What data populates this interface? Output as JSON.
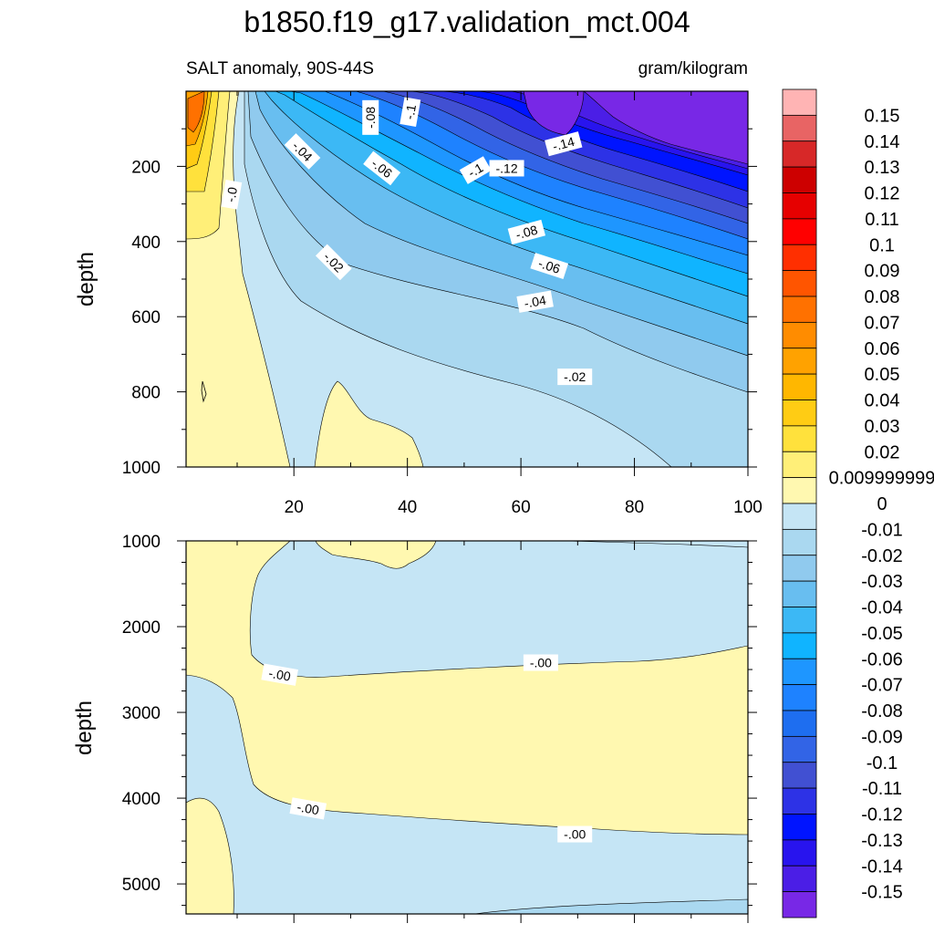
{
  "chart_data": [
    {
      "type": "heatmap",
      "title": "b1850.f19_g17.validation_mct.004",
      "subtitle_left": "SALT anomaly, 90S-44S",
      "subtitle_right": "gram/kilogram",
      "xlabel": "",
      "ylabel": "depth",
      "xlim": [
        1,
        100
      ],
      "ylim": [
        1000,
        0
      ],
      "x_ticks": [
        20,
        40,
        60,
        80,
        100
      ],
      "y_ticks": [
        200,
        400,
        600,
        800,
        1000
      ],
      "contour_labels": [
        {
          "text": "-.08",
          "x": 33.5,
          "y": 70,
          "rot": -90
        },
        {
          "text": "-.1",
          "x": 40.5,
          "y": 55,
          "rot": -80
        },
        {
          "text": "-.04",
          "x": 21.5,
          "y": 160,
          "rot": 45
        },
        {
          "text": "-.06",
          "x": 35.5,
          "y": 205,
          "rot": 38
        },
        {
          "text": "-.0",
          "x": 9,
          "y": 275,
          "rot": -80
        },
        {
          "text": "-.14",
          "x": 67.5,
          "y": 140,
          "rot": -15
        },
        {
          "text": "-.1",
          "x": 52,
          "y": 210,
          "rot": -30
        },
        {
          "text": "-.12",
          "x": 57.5,
          "y": 205,
          "rot": 0
        },
        {
          "text": "-.08",
          "x": 61,
          "y": 375,
          "rot": -15
        },
        {
          "text": "-.02",
          "x": 27,
          "y": 455,
          "rot": 45
        },
        {
          "text": "-.06",
          "x": 65,
          "y": 465,
          "rot": 18
        },
        {
          "text": "-.04",
          "x": 62.5,
          "y": 560,
          "rot": -10
        },
        {
          "text": "-.02",
          "x": 69.5,
          "y": 760,
          "rot": 0
        }
      ]
    },
    {
      "type": "heatmap",
      "xlabel": "",
      "ylabel": "depth",
      "xlim": [
        1,
        100
      ],
      "ylim": [
        5350,
        1000
      ],
      "y_ticks": [
        1000,
        2000,
        3000,
        4000,
        5000
      ],
      "contour_labels": [
        {
          "text": "-.00",
          "x": 17.5,
          "y": 2560,
          "rot": 10
        },
        {
          "text": "-.00",
          "x": 63.5,
          "y": 2420,
          "rot": 0
        },
        {
          "text": "-.00",
          "x": 22.5,
          "y": 4120,
          "rot": 10
        },
        {
          "text": "-.00",
          "x": 69.5,
          "y": 4420,
          "rot": 0
        }
      ]
    }
  ],
  "colorbar": {
    "labels": [
      "0.15",
      "0.14",
      "0.13",
      "0.12",
      "0.11",
      "0.1",
      "0.09",
      "0.08",
      "0.07",
      "0.06",
      "0.05",
      "0.04",
      "0.03",
      "0.02",
      "0.009999999",
      "0",
      "-0.01",
      "-0.02",
      "-0.03",
      "-0.04",
      "-0.05",
      "-0.06",
      "-0.07",
      "-0.08",
      "-0.09",
      "-0.1",
      "-0.11",
      "-0.12",
      "-0.13",
      "-0.14",
      "-0.15"
    ],
    "colors": [
      "#ffb4b4",
      "#e86464",
      "#d72828",
      "#cd0000",
      "#e60000",
      "#ff0000",
      "#ff2f00",
      "#ff5500",
      "#ff7100",
      "#ff8c00",
      "#ffa200",
      "#ffb700",
      "#ffcc14",
      "#ffe13c",
      "#ffef78",
      "#fff8b0",
      "#c5e5f5",
      "#aad8f0",
      "#90caee",
      "#68bef0",
      "#3cb8f5",
      "#10b4ff",
      "#1e96ff",
      "#1e82ff",
      "#1e6ef0",
      "#3264e6",
      "#4150d2",
      "#2d32e6",
      "#0014ff",
      "#2814ee",
      "#4b1ee6",
      "#7828e6"
    ]
  }
}
